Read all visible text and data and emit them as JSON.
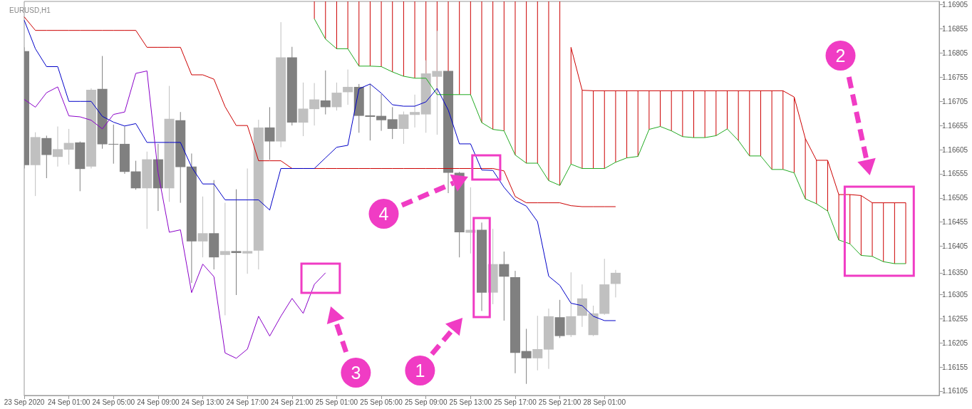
{
  "chart_data": {
    "type": "candlestick",
    "title": "EURUSD,H1",
    "categories": [
      "23 Sep 2020",
      null,
      null,
      null,
      "24 Sep 01:00",
      null,
      null,
      null,
      "24 Sep 05:00",
      null,
      null,
      null,
      "24 Sep 09:00",
      null,
      null,
      null,
      "24 Sep 13:00",
      null,
      null,
      null,
      "24 Sep 17:00",
      null,
      null,
      null,
      "24 Sep 21:00",
      null,
      null,
      null,
      "25 Sep 01:00",
      null,
      null,
      null,
      "25 Sep 05:00",
      null,
      null,
      null,
      "25 Sep 09:00",
      null,
      null,
      null,
      "25 Sep 13:00",
      null,
      null,
      null,
      "25 Sep 17:00",
      null,
      null,
      null,
      "25 Sep 21:00",
      null,
      null,
      null,
      "28 Sep 01:00",
      null,
      null,
      null,
      null,
      null,
      null,
      null,
      null,
      null,
      null,
      null,
      null,
      null,
      null,
      null,
      null,
      null,
      null,
      null,
      null,
      null,
      null,
      null,
      null,
      null,
      null,
      null,
      null,
      null,
      null
    ],
    "ohlc": [
      [
        1.16809,
        1.16817,
        1.16566,
        1.16573
      ],
      [
        1.16573,
        1.16641,
        1.16509,
        1.16631
      ],
      [
        1.16629,
        1.16634,
        1.16546,
        1.16594
      ],
      [
        1.1659,
        1.16653,
        1.1657,
        1.16606
      ],
      [
        1.16605,
        1.16648,
        1.16574,
        1.16619
      ],
      [
        1.1662,
        1.16622,
        1.16519,
        1.16565
      ],
      [
        1.1657,
        1.16732,
        1.16566,
        1.16729
      ],
      [
        1.16731,
        1.16799,
        1.16607,
        1.16616
      ],
      [
        1.16617,
        1.16657,
        1.16576,
        1.16617
      ],
      [
        1.16617,
        1.16653,
        1.16555,
        1.16559
      ],
      [
        1.1656,
        1.16582,
        1.16522,
        1.16525
      ],
      [
        1.16525,
        1.16601,
        1.16441,
        1.16585
      ],
      [
        1.16585,
        1.16617,
        1.16478,
        1.16525
      ],
      [
        1.16525,
        1.16737,
        1.16497,
        1.16669
      ],
      [
        1.16666,
        1.16683,
        1.16495,
        1.16569
      ],
      [
        1.1657,
        1.16597,
        1.16329,
        1.16415
      ],
      [
        1.16415,
        1.16508,
        1.16382,
        1.16432
      ],
      [
        1.16432,
        1.16542,
        1.16357,
        1.16382
      ],
      [
        1.16387,
        1.16495,
        1.16262,
        1.16395
      ],
      [
        1.16395,
        1.16523,
        1.16304,
        1.16391
      ],
      [
        1.1639,
        1.16566,
        1.16348,
        1.16395
      ],
      [
        1.16396,
        1.16667,
        1.16357,
        1.16651
      ],
      [
        1.16651,
        1.16693,
        1.16584,
        1.16622
      ],
      [
        1.16622,
        1.16869,
        1.1661,
        1.16796
      ],
      [
        1.16796,
        1.16818,
        1.16655,
        1.16661
      ],
      [
        1.16661,
        1.16744,
        1.16633,
        1.1669
      ],
      [
        1.16689,
        1.16743,
        1.16655,
        1.16709
      ],
      [
        1.16707,
        1.16769,
        1.16678,
        1.16693
      ],
      [
        1.16693,
        1.16744,
        1.16686,
        1.16723
      ],
      [
        1.16724,
        1.16771,
        1.16698,
        1.16735
      ],
      [
        1.16735,
        1.16741,
        1.1664,
        1.16675
      ],
      [
        1.16676,
        1.16741,
        1.16624,
        1.16673
      ],
      [
        1.16675,
        1.1672,
        1.16644,
        1.16666
      ],
      [
        1.16668,
        1.16693,
        1.16627,
        1.16648
      ],
      [
        1.16648,
        1.16684,
        1.16617,
        1.16678
      ],
      [
        1.16677,
        1.16719,
        1.16651,
        1.16683
      ],
      [
        1.16678,
        1.1679,
        1.1664,
        1.16763
      ],
      [
        1.16756,
        1.16851,
        1.16636,
        1.16768
      ],
      [
        1.16768,
        1.16768,
        1.16515,
        1.16557
      ],
      [
        1.16557,
        1.16559,
        1.16382,
        1.16434
      ],
      [
        1.16433,
        1.16527,
        1.1639,
        1.16439
      ],
      [
        1.16439,
        1.16454,
        1.16271,
        1.16309
      ],
      [
        1.16309,
        1.16441,
        1.16285,
        1.16368
      ],
      [
        1.16368,
        1.16394,
        1.16251,
        1.16342
      ],
      [
        1.16341,
        1.16354,
        1.16142,
        1.16184
      ],
      [
        1.16188,
        1.16234,
        1.1612,
        1.16173
      ],
      [
        1.16173,
        1.16261,
        1.16148,
        1.16192
      ],
      [
        1.16191,
        1.16276,
        1.16151,
        1.1626
      ],
      [
        1.16258,
        1.16294,
        1.16215,
        1.16219
      ],
      [
        1.16221,
        1.16351,
        1.16217,
        1.1626
      ],
      [
        1.16261,
        1.16326,
        1.16238,
        1.16297
      ],
      [
        1.16221,
        1.16282,
        1.16219,
        1.16266
      ],
      [
        1.16265,
        1.16379,
        1.16263,
        1.16326
      ],
      [
        1.16327,
        1.16356,
        1.16299,
        1.1635
      ],
      null,
      null,
      null,
      null,
      null,
      null,
      null,
      null,
      null,
      null,
      null,
      null,
      null,
      null,
      null,
      null,
      null,
      null,
      null,
      null,
      null,
      null,
      null,
      null,
      null,
      null,
      null,
      null,
      null
    ],
    "colors": [
      "#808080",
      "#c0c0c0",
      "#808080",
      "#c0c0c0",
      "#c0c0c0",
      "#808080",
      "#c0c0c0",
      "#808080",
      "#808080",
      "#808080",
      "#808080",
      "#c0c0c0",
      "#808080",
      "#c0c0c0",
      "#808080",
      "#808080",
      "#c0c0c0",
      "#808080",
      "#c0c0c0",
      "#808080",
      "#c0c0c0",
      "#c0c0c0",
      "#808080",
      "#c0c0c0",
      "#808080",
      "#c0c0c0",
      "#c0c0c0",
      "#808080",
      "#c0c0c0",
      "#c0c0c0",
      "#808080",
      "#808080",
      "#808080",
      "#808080",
      "#c0c0c0",
      "#c0c0c0",
      "#c0c0c0",
      "#c0c0c0",
      "#808080",
      "#808080",
      "#c0c0c0",
      "#808080",
      "#c0c0c0",
      "#808080",
      "#808080",
      "#808080",
      "#c0c0c0",
      "#c0c0c0",
      "#808080",
      "#c0c0c0",
      "#c0c0c0",
      "#c0c0c0",
      "#c0c0c0",
      "#c0c0c0",
      null,
      null,
      null,
      null,
      null,
      null,
      null,
      null,
      null,
      null,
      null,
      null,
      null,
      null,
      null,
      null,
      null,
      null,
      null,
      null,
      null,
      null,
      null,
      null,
      null,
      null,
      null,
      null,
      null
    ],
    "series": [
      {
        "type": "bar",
        "color": "#cc0000",
        "base": [
          null,
          null,
          null,
          null,
          null,
          null,
          null,
          null,
          null,
          null,
          null,
          null,
          null,
          null,
          null,
          null,
          null,
          null,
          null,
          null,
          null,
          null,
          null,
          null,
          null,
          null,
          1.16876,
          1.16834,
          1.16814,
          1.16814,
          1.16778,
          1.16778,
          1.16777,
          1.16766,
          1.16757,
          1.16753,
          1.16753,
          1.16719,
          1.16719,
          1.16719,
          1.16719,
          1.16661,
          1.16647,
          1.16644,
          1.16594,
          1.16577,
          1.16577,
          1.16541,
          1.16531,
          1.16575,
          1.16566,
          1.16566,
          1.16566,
          1.16579,
          1.16588,
          1.16591,
          1.16647,
          1.16653,
          1.16644,
          1.16632,
          1.1663,
          1.1663,
          1.16634,
          1.16648,
          1.16624,
          1.16592,
          1.16592,
          1.16564,
          1.16564,
          1.16557,
          1.16503,
          1.16493,
          1.16478,
          1.16418,
          1.1641,
          1.16386,
          1.16384,
          1.16373,
          1.16369,
          1.16369,
          null,
          null,
          null
        ],
        "values": [
          null,
          null,
          null,
          null,
          null,
          null,
          null,
          null,
          null,
          null,
          null,
          null,
          null,
          null,
          null,
          null,
          null,
          null,
          null,
          null,
          null,
          null,
          null,
          null,
          null,
          null,
          0.00036,
          0.00078,
          0.00098,
          0.00098,
          0.00134,
          0.00134,
          0.00135,
          0.00146,
          0.00155,
          0.00159,
          0.00159,
          0.00193,
          0.00193,
          0.00193,
          0.00193,
          0.00251,
          0.00265,
          0.00268,
          0.00318,
          0.00335,
          0.00335,
          0.00371,
          0.00381,
          0.00242,
          0.00162,
          0.00161,
          0.00161,
          0.00148,
          0.00139,
          0.00136,
          0.0008,
          0.00074,
          0.00083,
          0.00095,
          0.00097,
          0.00097,
          0.00093,
          0.00079,
          0.00103,
          0.00135,
          0.00135,
          0.00163,
          0.00163,
          0.00157,
          0.00125,
          0.0009,
          0.00105,
          0.00094,
          0.00102,
          0.00124,
          0.00111,
          0.00122,
          0.00126,
          0.00126,
          null,
          null,
          null
        ]
      },
      {
        "type": "line",
        "color": "#22aa22",
        "values": [
          null,
          null,
          null,
          null,
          null,
          null,
          null,
          null,
          null,
          null,
          null,
          null,
          null,
          null,
          null,
          null,
          null,
          null,
          null,
          null,
          null,
          null,
          null,
          null,
          null,
          null,
          1.16876,
          1.16834,
          1.16814,
          1.16814,
          1.16778,
          1.16778,
          1.16777,
          1.16766,
          1.16757,
          1.16753,
          1.16753,
          1.16719,
          1.16719,
          1.16719,
          1.16719,
          1.16661,
          1.16647,
          1.16644,
          1.16594,
          1.16577,
          1.16577,
          1.16541,
          1.16531,
          1.16575,
          1.16566,
          1.16566,
          1.16566,
          1.16579,
          1.16588,
          1.16591,
          1.16647,
          1.16653,
          1.16644,
          1.16632,
          1.1663,
          1.1663,
          1.16634,
          1.16648,
          1.16624,
          1.16592,
          1.16592,
          1.16564,
          1.16564,
          1.16557,
          1.16503,
          1.16493,
          1.16478,
          1.16418,
          1.1641,
          1.16386,
          1.16384,
          1.16373,
          1.16369,
          1.16369,
          null,
          null,
          null
        ]
      },
      {
        "type": "line",
        "color": "#cc0000",
        "values": [
          null,
          null,
          null,
          null,
          null,
          null,
          null,
          null,
          null,
          null,
          null,
          null,
          null,
          null,
          null,
          null,
          null,
          null,
          null,
          null,
          null,
          null,
          null,
          null,
          null,
          null,
          null,
          null,
          null,
          null,
          null,
          null,
          null,
          null,
          null,
          null,
          null,
          null,
          null,
          null,
          null,
          null,
          null,
          null,
          null,
          null,
          null,
          null,
          null,
          1.16817,
          1.16728,
          1.16727,
          1.16727,
          1.16727,
          1.16727,
          1.16727,
          1.16727,
          1.16727,
          1.16727,
          1.16727,
          1.16727,
          1.16727,
          1.16727,
          1.16727,
          1.16727,
          1.16727,
          1.16727,
          1.16727,
          1.16727,
          1.16714,
          1.16628,
          1.16583,
          1.16583,
          1.16512,
          1.16512,
          1.1651,
          1.16495,
          1.16495,
          1.16495,
          1.16495,
          null,
          null,
          null
        ]
      },
      {
        "type": "line",
        "color": "#cc0000",
        "values": [
          1.1688,
          1.16852,
          1.16852,
          1.16852,
          1.16852,
          1.16852,
          1.16852,
          1.16852,
          1.16852,
          1.16852,
          1.16852,
          1.16817,
          1.16817,
          1.16817,
          1.16817,
          1.1676,
          1.1676,
          1.16751,
          1.16694,
          1.16655,
          1.16655,
          1.16582,
          1.16582,
          1.16582,
          1.16566,
          1.16566,
          1.16566,
          1.16566,
          1.16566,
          1.16566,
          1.16566,
          1.16566,
          1.16566,
          1.16566,
          1.16566,
          1.16566,
          1.16566,
          1.16566,
          1.16566,
          1.16566,
          1.16566,
          1.16566,
          1.16566,
          1.16561,
          1.16508,
          1.16495,
          1.16495,
          1.16495,
          1.16495,
          1.16489,
          1.16487,
          1.16487,
          1.16487,
          1.16487,
          null,
          null,
          null,
          null,
          null,
          null,
          null,
          null,
          null,
          null,
          null,
          null,
          null,
          null,
          null,
          null,
          null,
          null,
          null,
          null,
          null,
          null,
          null,
          null,
          null,
          null,
          null,
          null,
          null
        ]
      },
      {
        "type": "line",
        "color": "#0000c8",
        "values": [
          1.16873,
          1.16814,
          1.16777,
          1.16777,
          1.16705,
          1.16705,
          1.16705,
          1.16674,
          1.16662,
          1.16654,
          1.16659,
          1.1662,
          1.1662,
          1.1662,
          1.1662,
          1.16569,
          1.16534,
          1.16534,
          1.16501,
          1.16501,
          1.16501,
          1.16501,
          1.1648,
          1.16566,
          1.16566,
          1.16566,
          1.16566,
          1.16588,
          1.1661,
          1.16614,
          1.16731,
          1.16741,
          1.16722,
          1.16698,
          1.16695,
          1.16695,
          1.16704,
          1.16732,
          1.16687,
          1.16617,
          1.16617,
          1.16563,
          1.16562,
          1.16527,
          1.165,
          1.16488,
          1.16456,
          1.16343,
          1.16324,
          1.16287,
          1.16282,
          1.1626,
          1.16251,
          1.16251,
          null,
          null,
          null,
          null,
          null,
          null,
          null,
          null,
          null,
          null,
          null,
          null,
          null,
          null,
          null,
          null,
          null,
          null,
          null,
          null,
          null,
          null,
          null,
          null,
          null,
          null,
          null,
          null,
          null
        ]
      },
      {
        "type": "line",
        "color": "#8a00c8",
        "values": [
          1.16709,
          1.16693,
          1.16723,
          1.16735,
          1.16675,
          1.16673,
          1.16666,
          1.16648,
          1.16678,
          1.16683,
          1.16763,
          1.16768,
          1.16557,
          1.16434,
          1.16439,
          1.16309,
          1.16368,
          1.16342,
          1.16184,
          1.16173,
          1.16192,
          1.1626,
          1.16219,
          1.1626,
          1.16297,
          1.16266,
          1.16326,
          1.1635,
          null,
          null,
          null,
          null,
          null,
          null,
          null,
          null,
          null,
          null,
          null,
          null,
          null,
          null,
          null,
          null,
          null,
          null,
          null,
          null,
          null,
          null,
          null,
          null,
          null,
          null,
          null,
          null,
          null,
          null,
          null,
          null,
          null,
          null,
          null,
          null,
          null,
          null,
          null,
          null,
          null,
          null,
          null,
          null,
          null,
          null,
          null,
          null,
          null,
          null,
          null,
          null,
          null,
          null,
          null
        ]
      }
    ],
    "ylim": [
      1.16096,
      1.16912
    ],
    "yticks": [
      1.16105,
      1.16155,
      1.16205,
      1.16255,
      1.16305,
      {
        "value": 1.1635,
        "label": "1.16350"
      },
      1.16405,
      1.16455,
      1.16505,
      1.16555,
      1.16605,
      1.16655,
      1.16705,
      1.16755,
      1.16805,
      1.16855,
      1.16905
    ],
    "annotations": [
      "1",
      "2",
      "3",
      "4"
    ]
  }
}
